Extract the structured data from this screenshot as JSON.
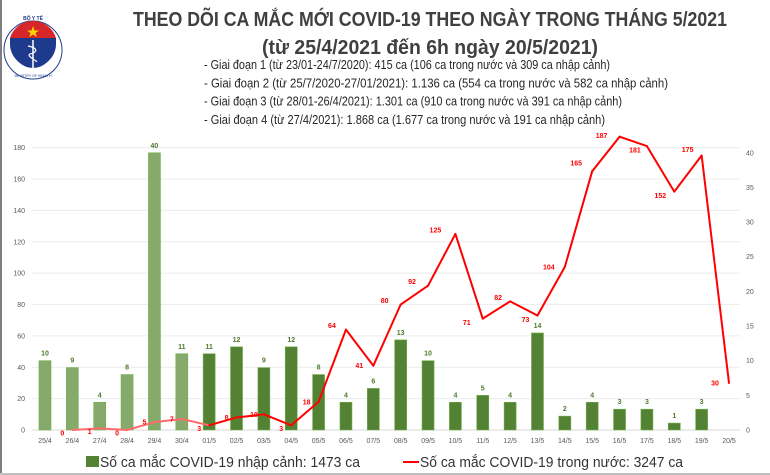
{
  "header": {
    "logo_text_top": "BỘ Y TẾ",
    "logo_text_bottom": "MINISTRY OF HEALTH",
    "title": "THEO DÕI CA MẮC MỚI COVID-19 THEO NGÀY TRONG THÁNG 5/2021",
    "subtitle": "(từ 25/4/2021 đến 6h ngày 20/5/2021)",
    "bullets": [
      "- Giai đoạn 1 (từ 23/01-24/7/2020): 415 ca (106 ca trong nước và 309 ca nhập cảnh)",
      "- Giai đoạn 2 (từ 25/7/2020-27/01/2021): 1.136 ca (554 ca trong nước và 582 ca nhập cảnh)",
      "- Giai đoạn 3 (từ 28/01-26/4/2021): 1.301 ca (910 ca trong nước và 391 ca nhập cảnh)",
      "- Giai đoạn 4 (từ 27/4/2021): 1.868 ca (1.677 ca trong nước và 191 ca nhập cảnh)"
    ]
  },
  "chart_data": {
    "type": "bar+line",
    "categories": [
      "25/4",
      "26/4",
      "27/4",
      "28/4",
      "29/4",
      "30/4",
      "01/5",
      "02/5",
      "03/5",
      "04/5",
      "05/5",
      "06/5",
      "07/5",
      "08/5",
      "09/5",
      "10/5",
      "11/5",
      "12/5",
      "13/5",
      "14/5",
      "15/5",
      "16/5",
      "17/5",
      "18/5",
      "19/5",
      "20/5"
    ],
    "series": [
      {
        "name": "Số ca mắc COVID-19 nhập cảnh: 1473 ca",
        "type": "bar",
        "axis": "right",
        "color": "#548235",
        "color_early": "#86aa6c",
        "values": [
          10,
          9,
          4,
          8,
          40,
          11,
          11,
          12,
          9,
          12,
          8,
          4,
          6,
          13,
          10,
          4,
          5,
          4,
          14,
          2,
          4,
          3,
          3,
          1,
          3,
          null
        ]
      },
      {
        "name": "Số ca mắc COVID-19 trong nước: 3247 ca",
        "type": "line",
        "axis": "left",
        "color": "#ff0000",
        "color_early": "#ff6b6b",
        "values": [
          null,
          0,
          1,
          0,
          5,
          7,
          3,
          8,
          10,
          3,
          18,
          64,
          41,
          80,
          92,
          125,
          71,
          82,
          73,
          104,
          165,
          187,
          181,
          152,
          175,
          30
        ]
      }
    ],
    "left_axis": {
      "ticks": [
        0,
        20,
        40,
        60,
        80,
        100,
        120,
        140,
        160,
        180
      ],
      "range": [
        0,
        190
      ]
    },
    "right_axis": {
      "ticks": [
        0,
        5,
        10,
        15,
        20,
        25,
        30,
        35,
        40
      ],
      "range": [
        0,
        43
      ]
    },
    "grid": true,
    "legend_position": "bottom"
  }
}
